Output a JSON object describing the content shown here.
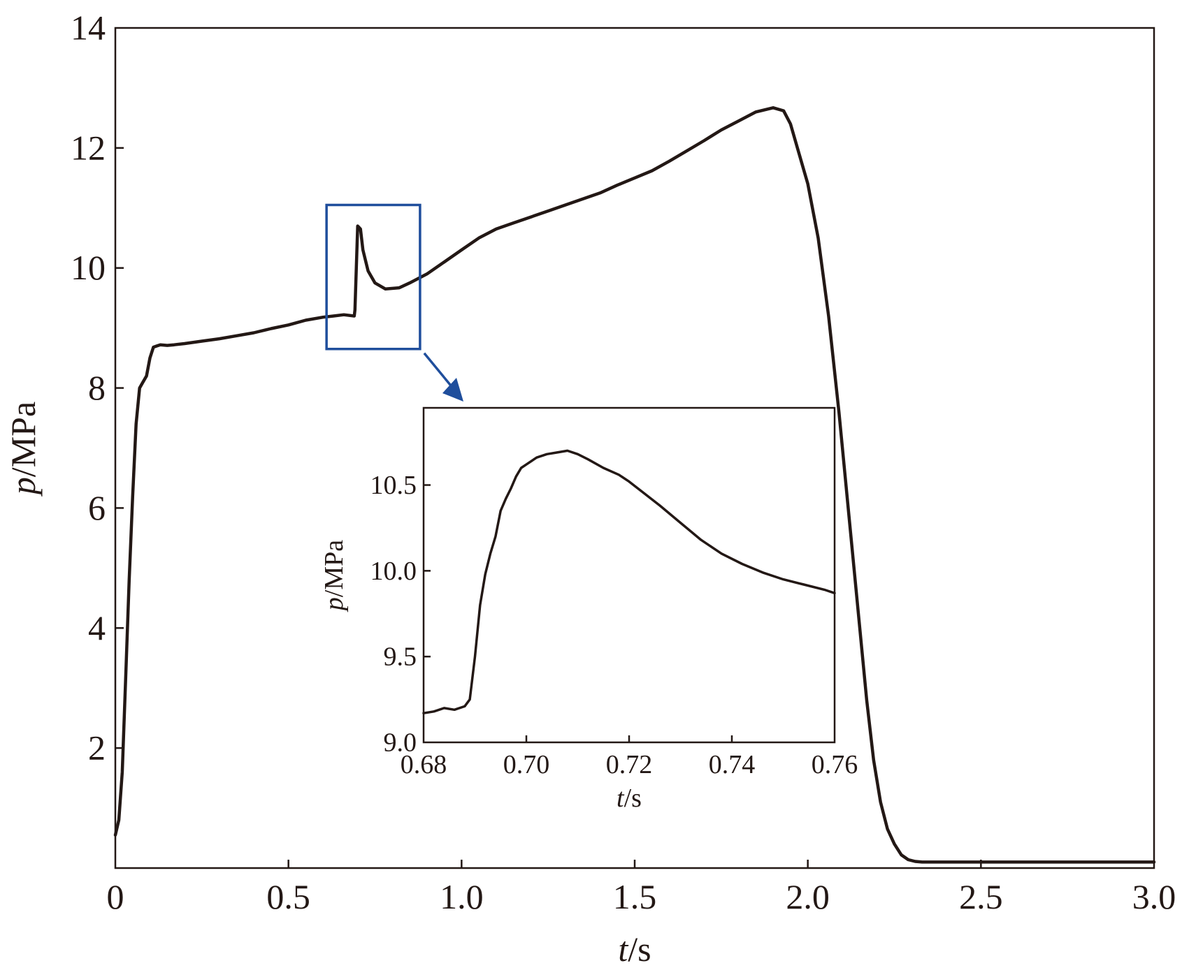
{
  "colors": {
    "line": "#231815",
    "frame": "#231815",
    "highlight": "#1f4e9c"
  },
  "chart_data": [
    {
      "type": "line",
      "xlabel": {
        "var": "t",
        "unit": "/s"
      },
      "ylabel": {
        "var": "p",
        "unit": "/MPa"
      },
      "xlim": [
        0,
        3.0
      ],
      "ylim": [
        0,
        14
      ],
      "xticks": [
        0,
        0.5,
        1.0,
        1.5,
        2.0,
        2.5,
        3.0
      ],
      "xtick_labels": [
        "0",
        "0.5",
        "1.0",
        "1.5",
        "2.0",
        "2.5",
        "3.0"
      ],
      "yticks": [
        2,
        4,
        6,
        8,
        10,
        12,
        14
      ],
      "ytick_labels": [
        "2",
        "4",
        "6",
        "8",
        "10",
        "12",
        "14"
      ],
      "grid": false,
      "series": [
        {
          "x": [
            0.0,
            0.01,
            0.02,
            0.03,
            0.04,
            0.05,
            0.06,
            0.07,
            0.08,
            0.09,
            0.1,
            0.11,
            0.12,
            0.13,
            0.15,
            0.17,
            0.2,
            0.25,
            0.3,
            0.35,
            0.4,
            0.45,
            0.5,
            0.55,
            0.6,
            0.63,
            0.66,
            0.69,
            0.692,
            0.7,
            0.708,
            0.715,
            0.73,
            0.75,
            0.78,
            0.82,
            0.85,
            0.9,
            0.95,
            1.0,
            1.05,
            1.1,
            1.15,
            1.2,
            1.25,
            1.3,
            1.35,
            1.4,
            1.45,
            1.5,
            1.55,
            1.6,
            1.65,
            1.7,
            1.75,
            1.8,
            1.85,
            1.9,
            1.93,
            1.95,
            1.97,
            2.0,
            2.03,
            2.06,
            2.09,
            2.12,
            2.15,
            2.17,
            2.19,
            2.21,
            2.23,
            2.25,
            2.27,
            2.29,
            2.31,
            2.33,
            2.36,
            2.4,
            2.45,
            2.5,
            2.55,
            2.6,
            2.7,
            2.8,
            2.9,
            3.0
          ],
          "y": [
            0.55,
            0.8,
            1.6,
            3.2,
            4.8,
            6.2,
            7.4,
            8.0,
            8.1,
            8.2,
            8.5,
            8.68,
            8.7,
            8.72,
            8.71,
            8.72,
            8.74,
            8.78,
            8.82,
            8.87,
            8.92,
            8.99,
            9.05,
            9.13,
            9.18,
            9.2,
            9.22,
            9.2,
            9.3,
            10.7,
            10.65,
            10.3,
            9.95,
            9.75,
            9.65,
            9.67,
            9.75,
            9.9,
            10.1,
            10.3,
            10.5,
            10.65,
            10.75,
            10.85,
            10.95,
            11.05,
            11.15,
            11.25,
            11.38,
            11.5,
            11.62,
            11.78,
            11.95,
            12.12,
            12.3,
            12.45,
            12.6,
            12.67,
            12.62,
            12.4,
            12.0,
            11.4,
            10.5,
            9.2,
            7.6,
            5.8,
            4.0,
            2.8,
            1.8,
            1.1,
            0.65,
            0.4,
            0.22,
            0.14,
            0.11,
            0.1,
            0.1,
            0.1,
            0.1,
            0.1,
            0.1,
            0.1,
            0.1,
            0.1,
            0.1,
            0.1
          ]
        }
      ]
    },
    {
      "type": "line",
      "xlabel": {
        "var": "t",
        "unit": "/s"
      },
      "ylabel": {
        "var": "p",
        "unit": "/MPa"
      },
      "xlim": [
        0.68,
        0.76
      ],
      "ylim": [
        9.0,
        10.95
      ],
      "xticks": [
        0.68,
        0.7,
        0.72,
        0.74,
        0.76
      ],
      "xtick_labels": [
        "0.68",
        "0.70",
        "0.72",
        "0.74",
        "0.76"
      ],
      "yticks": [
        9.0,
        9.5,
        10.0,
        10.5
      ],
      "ytick_labels": [
        "9.0",
        "9.5",
        "10.0",
        "10.5"
      ],
      "grid": false,
      "series": [
        {
          "x": [
            0.68,
            0.682,
            0.684,
            0.686,
            0.688,
            0.689,
            0.69,
            0.691,
            0.692,
            0.693,
            0.694,
            0.695,
            0.696,
            0.697,
            0.698,
            0.699,
            0.7,
            0.702,
            0.704,
            0.706,
            0.708,
            0.71,
            0.712,
            0.715,
            0.718,
            0.72,
            0.723,
            0.726,
            0.73,
            0.734,
            0.738,
            0.742,
            0.746,
            0.75,
            0.754,
            0.758,
            0.76
          ],
          "y": [
            9.17,
            9.18,
            9.2,
            9.19,
            9.21,
            9.25,
            9.5,
            9.8,
            9.98,
            10.1,
            10.2,
            10.35,
            10.42,
            10.48,
            10.55,
            10.6,
            10.62,
            10.66,
            10.68,
            10.69,
            10.7,
            10.68,
            10.65,
            10.6,
            10.56,
            10.52,
            10.45,
            10.38,
            10.28,
            10.18,
            10.1,
            10.04,
            9.99,
            9.95,
            9.92,
            9.89,
            9.87
          ]
        }
      ]
    }
  ]
}
